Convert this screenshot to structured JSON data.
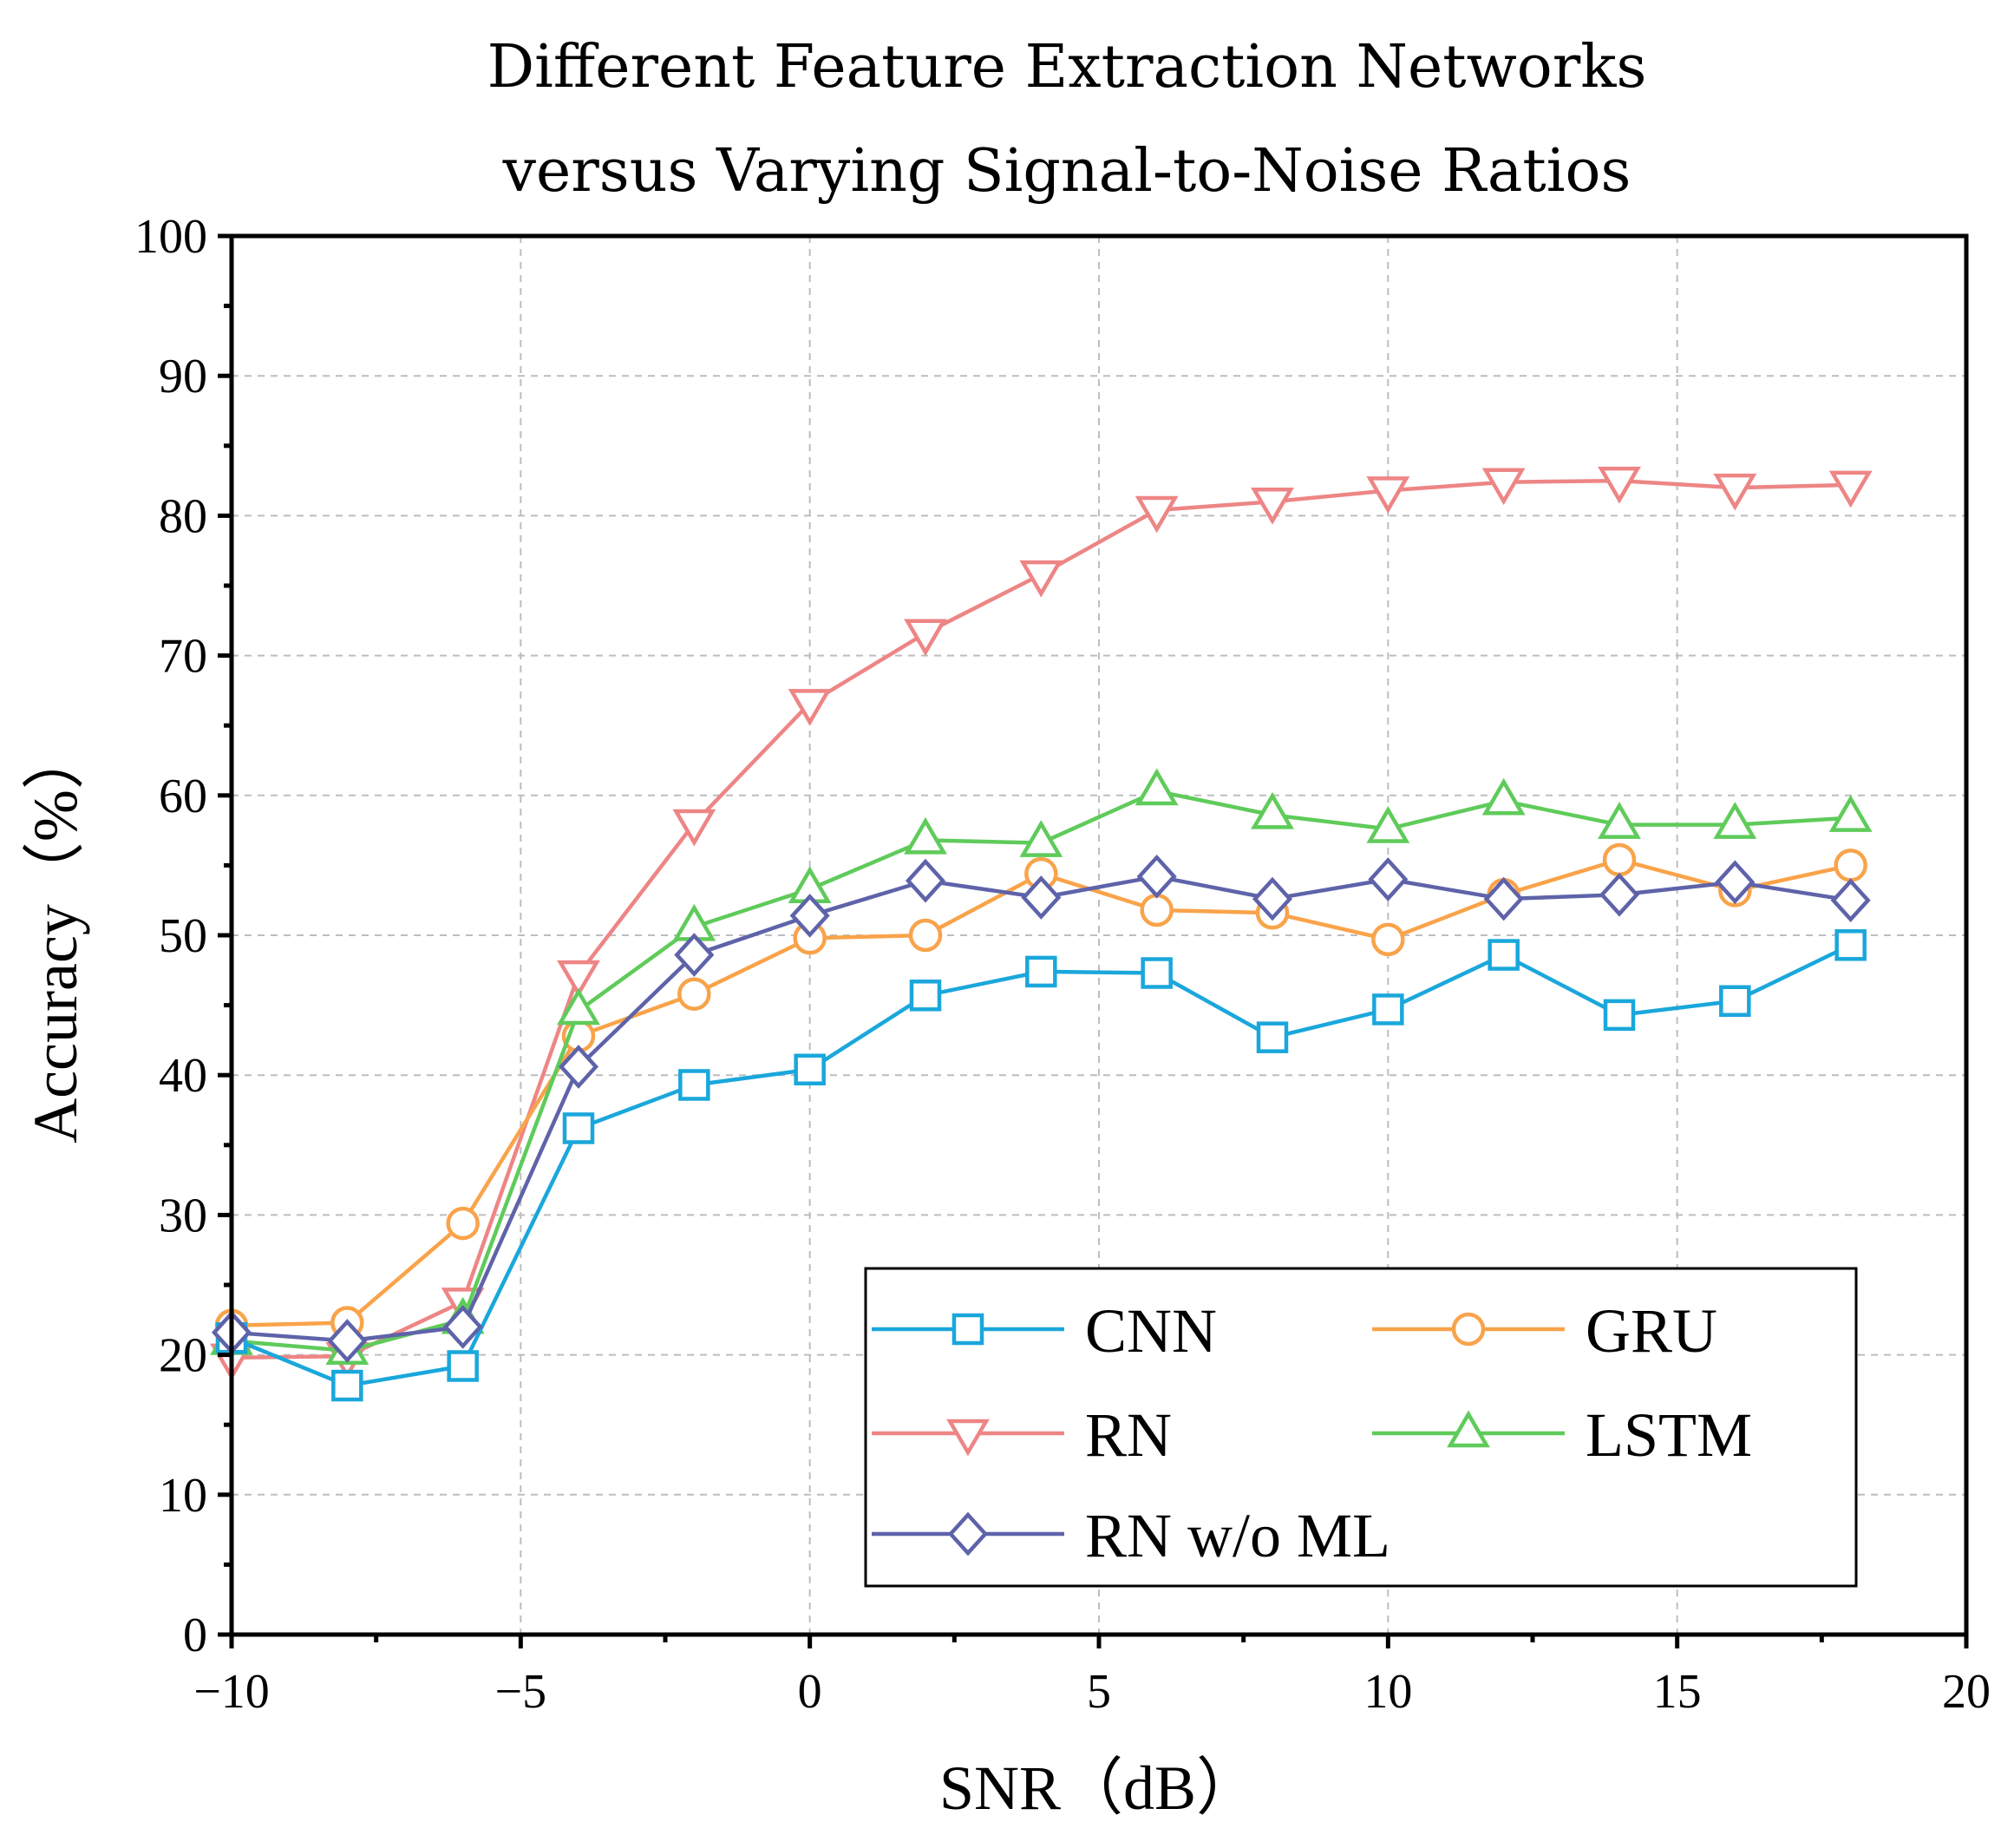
{
  "chart_data": {
    "type": "line",
    "title_lines": [
      "Different Feature Extraction Networks",
      "versus Varying Signal-to-Noise Ratios"
    ],
    "xlabel": "SNR（dB）",
    "ylabel": "Accuracy（%）",
    "xlim": [
      -10,
      20
    ],
    "ylim": [
      0,
      100
    ],
    "xticks": [
      -10,
      -5,
      0,
      5,
      10,
      15,
      20
    ],
    "xtick_labels": [
      "−10",
      "−5",
      "0",
      "5",
      "10",
      "15",
      "20"
    ],
    "yticks": [
      0,
      10,
      20,
      30,
      40,
      50,
      60,
      70,
      80,
      90,
      100
    ],
    "ytick_labels": [
      "0",
      "10",
      "20",
      "30",
      "40",
      "50",
      "60",
      "70",
      "80",
      "90",
      "100"
    ],
    "grid": true,
    "legend_position": "bottom-right",
    "x": [
      -10,
      -8,
      -6,
      -4,
      -2,
      0,
      2,
      4,
      6,
      8,
      10,
      12,
      14,
      16,
      18
    ],
    "series": [
      {
        "name": "CNN",
        "color": "#1AA7DB",
        "marker": "square",
        "values": [
          21.2,
          17.8,
          19.2,
          36.2,
          39.3,
          40.4,
          45.7,
          47.4,
          47.3,
          42.7,
          44.7,
          48.6,
          44.3,
          45.3,
          49.3
        ]
      },
      {
        "name": "GRU",
        "color": "#F9A34A",
        "marker": "circle",
        "values": [
          22.1,
          22.3,
          29.4,
          42.8,
          45.8,
          49.8,
          50.0,
          54.4,
          51.8,
          51.6,
          49.7,
          52.9,
          55.4,
          53.2,
          55.0
        ]
      },
      {
        "name": "RN",
        "color": "#EE8585",
        "marker": "triangle-down",
        "values": [
          19.8,
          19.9,
          23.8,
          47.2,
          58.0,
          66.6,
          71.6,
          75.8,
          80.4,
          81.0,
          81.8,
          82.4,
          82.5,
          82.0,
          82.2
        ]
      },
      {
        "name": "LSTM",
        "color": "#5FCB5A",
        "marker": "triangle-up",
        "values": [
          21.0,
          20.3,
          22.5,
          44.6,
          50.6,
          53.3,
          56.8,
          56.6,
          60.3,
          58.6,
          57.6,
          59.6,
          57.9,
          57.9,
          58.4
        ]
      },
      {
        "name": "RN w/o ML",
        "color": "#5E63A9",
        "marker": "diamond",
        "values": [
          21.6,
          21.0,
          22.0,
          40.6,
          48.6,
          51.4,
          53.9,
          52.7,
          54.2,
          52.6,
          54.0,
          52.6,
          52.9,
          53.8,
          52.5
        ]
      }
    ]
  }
}
